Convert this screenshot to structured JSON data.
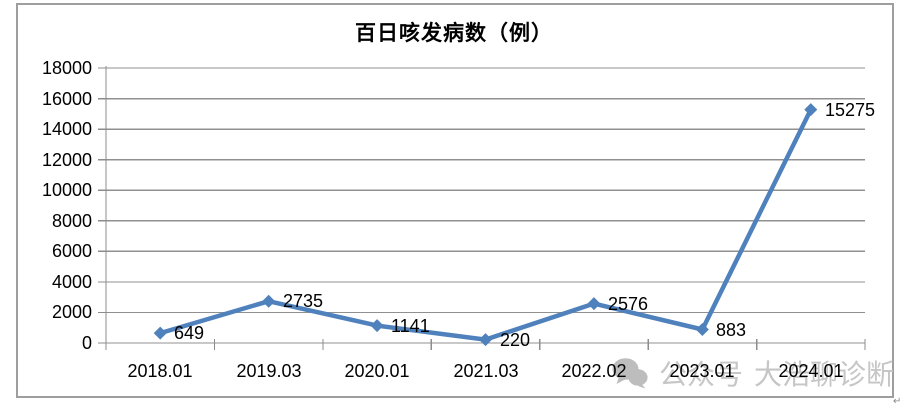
{
  "chart_data": {
    "type": "line",
    "title": "百日咳发病数（例）",
    "categories": [
      "2018.01",
      "2019.03",
      "2020.01",
      "2021.03",
      "2022.02",
      "2023.01",
      "2024.01"
    ],
    "values": [
      649,
      2735,
      1141,
      220,
      2576,
      883,
      15275
    ],
    "data_labels": [
      "649",
      "2735",
      "1141",
      "220",
      "2576",
      "883",
      "15275"
    ],
    "xlabel": "",
    "ylabel": "",
    "ylim": [
      0,
      18000
    ],
    "yticks": [
      0,
      2000,
      4000,
      6000,
      8000,
      10000,
      12000,
      14000,
      16000,
      18000
    ],
    "grid": true,
    "legend": false,
    "marker": "diamond",
    "series_name": "百日咳发病数"
  },
  "colors": {
    "series": "#4F81BD",
    "grid": "#909090",
    "axis": "#8c8c8c",
    "border": "#9e9e9e",
    "title": "#000000",
    "labels": "#000000",
    "watermark": "#c6c6c6"
  },
  "watermark": {
    "icon": "wechat-icon",
    "part1": "公众号",
    "part2": "大浩聊诊断"
  },
  "artifact": "↵"
}
